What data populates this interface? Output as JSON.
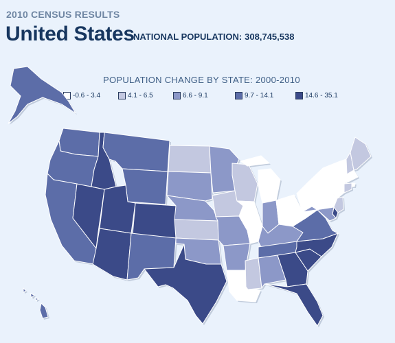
{
  "header": {
    "kicker": "2010 CENSUS RESULTS",
    "title": "United States",
    "national_label": "NATIONAL POPULATION:",
    "national_value": "308,745,538"
  },
  "legend": {
    "title": "POPULATION CHANGE BY STATE: 2000-2010",
    "bins": [
      {
        "label": "-0.6 - 3.4",
        "color": "#ffffff"
      },
      {
        "label": "4.1 - 6.5",
        "color": "#c3c8e0"
      },
      {
        "label": "6.6 - 9.1",
        "color": "#8c98c8"
      },
      {
        "label": "9.7 - 14.1",
        "color": "#5c6da8"
      },
      {
        "label": "14.6 - 35.1",
        "color": "#3b4a88"
      }
    ]
  },
  "states": {
    "WA": 3,
    "OR": 3,
    "CA": 3,
    "NV": 4,
    "ID": 4,
    "MT": 3,
    "WY": 3,
    "UT": 4,
    "AZ": 4,
    "CO": 4,
    "NM": 3,
    "ND": 1,
    "SD": 2,
    "NE": 2,
    "KS": 1,
    "OK": 2,
    "TX": 4,
    "MN": 2,
    "IA": 1,
    "MO": 2,
    "AR": 2,
    "LA": 0,
    "WI": 1,
    "IL": 0,
    "MI": 0,
    "IN": 2,
    "OH": 0,
    "KY": 2,
    "TN": 3,
    "MS": 1,
    "AL": 2,
    "GA": 4,
    "FL": 4,
    "SC": 4,
    "NC": 4,
    "VA": 3,
    "WV": 0,
    "PA": 0,
    "NY": 0,
    "NJ": 1,
    "DE": 4,
    "MD": 2,
    "VT": 0,
    "NH": 1,
    "ME": 1,
    "MA": 0,
    "RI": 0,
    "CT": 1,
    "AK": 3,
    "HI": 3
  }
}
